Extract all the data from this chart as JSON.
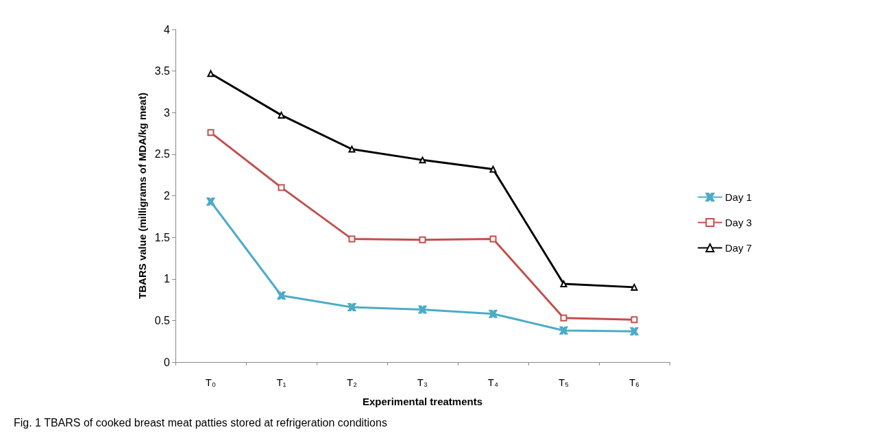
{
  "chart_data": {
    "type": "line",
    "xlabel": "Experimental treatments",
    "ylabel": "TBARS value (milligrams of MDA/kg meat)",
    "categories": [
      "T₀",
      "T₁",
      "T₂",
      "T₃",
      "T₄",
      "T₅",
      "T₆"
    ],
    "series": [
      {
        "name": "Day 1",
        "color": "#4bacc6",
        "marker": "cross",
        "values": [
          1.93,
          0.8,
          0.66,
          0.63,
          0.58,
          0.38,
          0.37
        ]
      },
      {
        "name": "Day 3",
        "color": "#c0504d",
        "marker": "square",
        "values": [
          2.76,
          2.1,
          1.48,
          1.47,
          1.48,
          0.53,
          0.51
        ]
      },
      {
        "name": "Day 7",
        "color": "#000000",
        "marker": "triangle",
        "values": [
          3.47,
          2.97,
          2.56,
          2.43,
          2.32,
          0.94,
          0.9
        ]
      }
    ],
    "ylim": [
      0,
      4
    ],
    "yticks": [
      0,
      0.5,
      1,
      1.5,
      2,
      2.5,
      3,
      3.5,
      4
    ],
    "grid": false,
    "legend": "right",
    "line_style": "solid",
    "annotations": [
      "Fig. 1 TBARS of cooked breast meat patties stored at refrigeration conditions"
    ]
  }
}
